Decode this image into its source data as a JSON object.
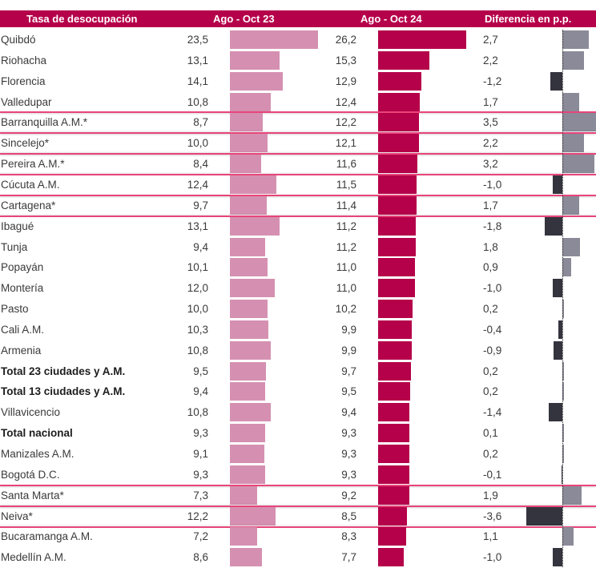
{
  "chart_data": {
    "type": "bar",
    "title": "",
    "columns": [
      "Tasa de desocupación",
      "Ago - Oct 23",
      "Ago - Oct 24",
      "Diferencia en p.p."
    ],
    "categories": [
      "Quibdó",
      "Riohacha",
      "Florencia",
      "Valledupar",
      "Barranquilla A.M.*",
      "Sincelejo*",
      "Pereira A.M.*",
      "Cúcuta A.M.",
      "Cartagena*",
      "Ibagué",
      "Tunja",
      "Popayán",
      "Montería",
      "Pasto",
      "Cali A.M.",
      "Armenia",
      "Total 23 ciudades y A.M.",
      "Total 13 ciudades y A.M.",
      "Villavicencio",
      "Total nacional",
      "Manizales A.M.",
      "Bogotá D.C.",
      "Santa Marta*",
      "Neiva*",
      "Bucaramanga A.M.",
      "Medellín A.M."
    ],
    "series": [
      {
        "name": "Ago - Oct 23",
        "values": [
          23.5,
          13.1,
          14.1,
          10.8,
          8.7,
          10.0,
          8.4,
          12.4,
          9.7,
          13.1,
          9.4,
          10.1,
          12.0,
          10.0,
          10.3,
          10.8,
          9.5,
          9.4,
          10.8,
          9.3,
          9.1,
          9.3,
          7.3,
          12.2,
          7.2,
          8.6
        ],
        "color": "#d590b1"
      },
      {
        "name": "Ago - Oct 24",
        "values": [
          26.2,
          15.3,
          12.9,
          12.4,
          12.2,
          12.1,
          11.6,
          11.5,
          11.4,
          11.2,
          11.2,
          11.0,
          11.0,
          10.2,
          9.9,
          9.9,
          9.7,
          9.5,
          9.4,
          9.3,
          9.3,
          9.3,
          9.2,
          8.5,
          8.3,
          7.7
        ],
        "color": "#b5004a"
      },
      {
        "name": "Diferencia en p.p.",
        "values": [
          2.7,
          2.2,
          -1.2,
          1.7,
          3.5,
          2.2,
          3.2,
          -1.0,
          1.7,
          -1.8,
          1.8,
          0.9,
          -1.0,
          0.2,
          -0.4,
          -0.9,
          0.2,
          0.2,
          -1.4,
          0.1,
          0.2,
          -0.1,
          1.9,
          -3.6,
          1.1,
          -1.0
        ],
        "color_positive": "#8a8a98",
        "color_negative": "#34343e"
      }
    ],
    "bold_rows": [
      "Total 23 ciudades y A.M.",
      "Total 13 ciudades y A.M.",
      "Total nacional"
    ],
    "highlighted_rows": [
      "Barranquilla A.M.*",
      "Sincelejo*",
      "Pereira A.M.*",
      "Cartagena*",
      "Santa Marta*",
      "Neiva*"
    ],
    "decimal_separator": ",",
    "grid": false,
    "legend": "none",
    "header_color": "#b5004a",
    "highlight_border_color": "#e8457a"
  },
  "header": {
    "name": "Tasa de desocupación",
    "col23": "Ago - Oct 23",
    "col24": "Ago - Oct 24",
    "diff": "Diferencia en p.p."
  }
}
